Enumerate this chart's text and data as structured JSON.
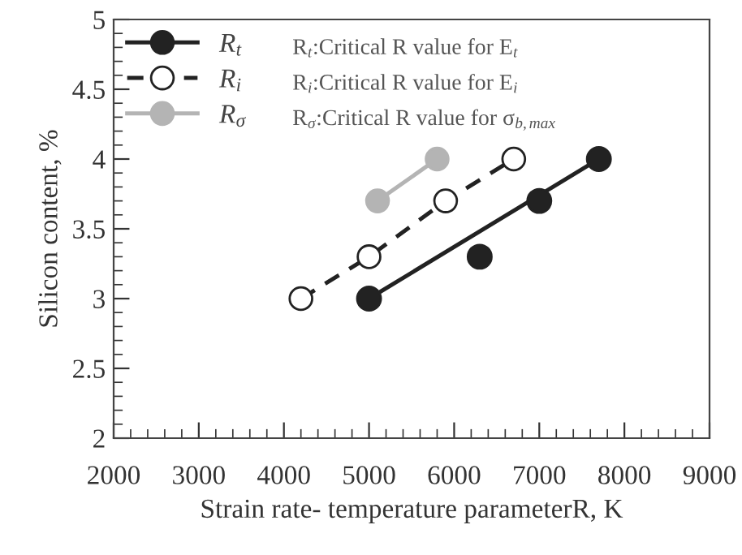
{
  "chart_data": {
    "type": "line",
    "xlabel": "Strain rate- temperature parameterR, K",
    "ylabel": "Silicon content, %",
    "xlim": [
      2000,
      9000
    ],
    "xticks": [
      2000,
      3000,
      4000,
      5000,
      6000,
      7000,
      8000,
      9000
    ],
    "ylim": [
      2,
      5
    ],
    "yticks": [
      2,
      2.5,
      3,
      3.5,
      4,
      4.5,
      5
    ],
    "grid": false,
    "legend": "top left",
    "series": [
      {
        "name": "R$_{t}$",
        "type": "scatter",
        "marker": "circle",
        "color": "#222222",
        "x": [
          5000,
          6300,
          7000,
          7700
        ],
        "values": [
          3.0,
          3.3,
          3.7,
          4.0
        ]
      },
      {
        "marker": "none",
        "line_style": "solid",
        "color": "#222222",
        "x": [
          5000,
          7700
        ],
        "values": [
          3.0,
          4.0
        ]
      },
      {
        "name": "R$_{i}$",
        "marker": "circle",
        "line_style": "dashed",
        "color": "#222222",
        "x": [
          4200,
          5000,
          5900,
          6700
        ],
        "values": [
          3.0,
          3.3,
          3.7,
          4.0
        ]
      },
      {
        "name": "R$_{σ}$",
        "marker": "circle",
        "line_style": "solid",
        "color": "#b4b4b4",
        "x": [
          5100,
          5800
        ],
        "values": [
          3.7,
          4.0
        ]
      }
    ],
    "annotations": [
      "R$_{t}$:Critical R value for E$_{t}$",
      "R$_{i}$:Critical R value for E$_{i}$",
      "R$_{σ}$:Critical R value for σ$_{b,max}$"
    ]
  }
}
